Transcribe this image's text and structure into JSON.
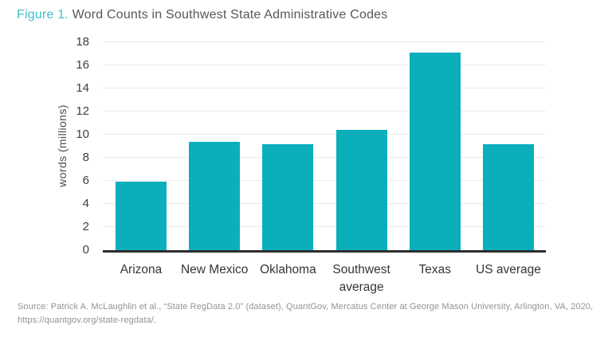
{
  "title": {
    "prefix": "Figure 1.",
    "rest": " Word Counts in Southwest State Administrative Codes"
  },
  "source": {
    "line1": "Source: Patrick A. McLaughlin et al., “State RegData 2.0” (dataset), QuantGov, Mercatus Center at George Mason University, Arlington, VA, 2020,",
    "line2": "https://quantgov.org/state-regdata/."
  },
  "chart_data": {
    "type": "bar",
    "title": "Figure 1. Word Counts in Southwest State Administrative Codes",
    "categories": [
      "Arizona",
      "New Mexico",
      "Oklahoma",
      "Southwest average",
      "Texas",
      "US average"
    ],
    "values": [
      5.9,
      9.4,
      9.2,
      10.4,
      17.1,
      9.2
    ],
    "xlabel": "",
    "ylabel": "words (millions)",
    "ylim": [
      0,
      18
    ],
    "ytick_step": 2,
    "grid": true,
    "legend": "none",
    "bar_color": "#0bafbc",
    "colors": {
      "title_accent": "#41bfca",
      "title_text": "#54585d",
      "axis_text": "#3d3f42",
      "gridline": "#ebebeb",
      "baseline": "#2d2d2e",
      "source_text": "#909396"
    }
  }
}
